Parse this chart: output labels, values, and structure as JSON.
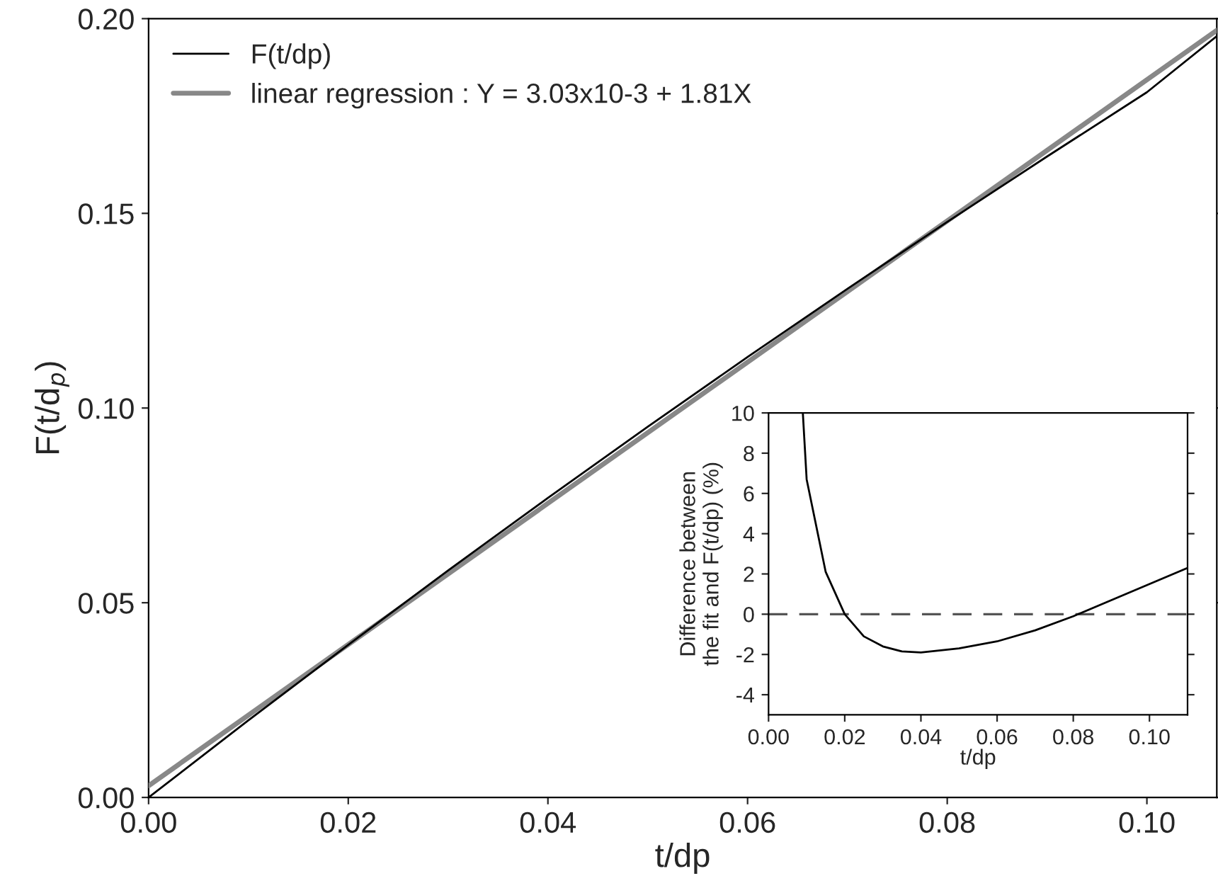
{
  "chart_data": [
    {
      "type": "line",
      "xlabel": "t/dp",
      "ylabel": "F(t/d$_{p}$)",
      "xlim": [
        0,
        0.107
      ],
      "ylim": [
        0,
        0.2
      ],
      "xticks": [
        {
          "value": 0,
          "label": "0.00"
        },
        {
          "value": 0.02,
          "label": "0.02"
        },
        {
          "value": 0.04,
          "label": "0.04"
        },
        {
          "value": 0.06,
          "label": "0.06"
        },
        {
          "value": 0.08,
          "label": "0.08"
        },
        {
          "value": 0.1,
          "label": "0.10"
        }
      ],
      "yticks": [
        {
          "value": 0,
          "label": "0.00"
        },
        {
          "value": 0.05,
          "label": "0.05"
        },
        {
          "value": 0.1,
          "label": "0.10"
        },
        {
          "value": 0.15,
          "label": "0.15"
        },
        {
          "value": 0.2,
          "label": "0.20"
        }
      ],
      "legend": "top left",
      "line_style": "solid",
      "series": [
        {
          "name": "F(t/dp)",
          "color": "#000000",
          "x": [
            0,
            0.01,
            0.02,
            0.03,
            0.04,
            0.05,
            0.06,
            0.07,
            0.08,
            0.09,
            0.1,
            0.107
          ],
          "values": [
            0,
            0.0198,
            0.0392,
            0.0583,
            0.0769,
            0.0952,
            0.1131,
            0.1306,
            0.1478,
            0.1646,
            0.1811,
            0.1955
          ]
        },
        {
          "name": "linear regression : Y = 3.03x10-3 + 1.81X",
          "color": "#888888",
          "x": [
            0,
            0.107
          ],
          "values": [
            0.003,
            0.197
          ]
        }
      ]
    },
    {
      "type": "line",
      "xlabel": "t/dp",
      "ylabel": "Difference between\nthe fit and F(t/dp) (%)",
      "xlim": [
        0,
        0.11
      ],
      "ylim": [
        -5,
        10
      ],
      "xticks": [
        {
          "value": 0,
          "label": "0.00"
        },
        {
          "value": 0.02,
          "label": "0.02"
        },
        {
          "value": 0.04,
          "label": "0.04"
        },
        {
          "value": 0.06,
          "label": "0.06"
        },
        {
          "value": 0.08,
          "label": "0.08"
        },
        {
          "value": 0.1,
          "label": "0.10"
        }
      ],
      "yticks": [
        -4,
        -2,
        0,
        2,
        4,
        6,
        8,
        10
      ],
      "ref_lines": [
        {
          "axis": "y",
          "value": 0,
          "color": "#555555",
          "line_style": "dashed"
        }
      ],
      "series": [
        {
          "color": "#000000",
          "x": [
            0.009,
            0.01,
            0.015,
            0.02,
            0.025,
            0.03,
            0.035,
            0.04,
            0.05,
            0.06,
            0.07,
            0.08,
            0.09,
            0.1,
            0.11
          ],
          "values": [
            10,
            6.7,
            2.1,
            0,
            -1.1,
            -1.6,
            -1.85,
            -1.9,
            -1.7,
            -1.35,
            -0.8,
            -0.1,
            0.7,
            1.5,
            2.3
          ]
        }
      ]
    }
  ]
}
